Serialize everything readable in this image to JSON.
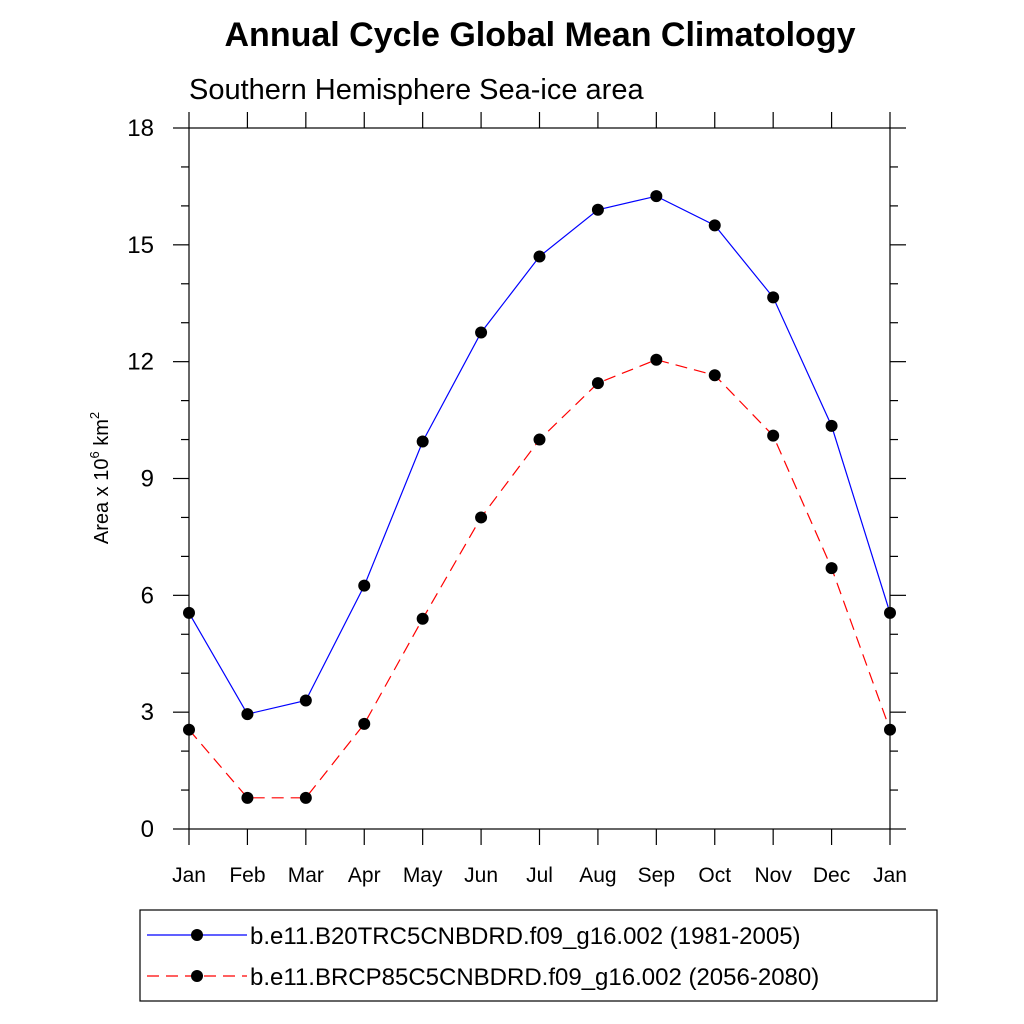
{
  "chart_data": {
    "type": "line",
    "title": "Annual Cycle Global Mean Climatology",
    "subtitle": "Southern Hemisphere Sea-ice area",
    "xlabel": "",
    "ylabel_main": "Area x 10",
    "ylabel_exp1": "6",
    "ylabel_unit": " km",
    "ylabel_exp2": "2",
    "categories": [
      "Jan",
      "Feb",
      "Mar",
      "Apr",
      "May",
      "Jun",
      "Jul",
      "Aug",
      "Sep",
      "Oct",
      "Nov",
      "Dec",
      "Jan"
    ],
    "ylim": [
      0,
      18
    ],
    "yticks": [
      "0",
      "3",
      "6",
      "9",
      "12",
      "15",
      "18"
    ],
    "grid": false,
    "legend_position": "bottom",
    "series": [
      {
        "name": "b.e11.B20TRC5CNBDRD.f09_g16.002 (1981-2005)",
        "color": "#0000ff",
        "line_style": "solid",
        "marker": "filled-circle",
        "values": [
          5.55,
          2.95,
          3.3,
          6.25,
          9.95,
          12.75,
          14.7,
          15.9,
          16.25,
          15.5,
          13.65,
          10.35,
          5.55
        ]
      },
      {
        "name": "b.e11.BRCP85C5CNBDRD.f09_g16.002 (2056-2080)",
        "color": "#ff0000",
        "line_style": "dashed",
        "marker": "filled-circle",
        "values": [
          2.55,
          0.8,
          0.8,
          2.7,
          5.4,
          8.0,
          10.0,
          11.45,
          12.05,
          11.65,
          10.1,
          6.7,
          2.55
        ]
      }
    ]
  }
}
